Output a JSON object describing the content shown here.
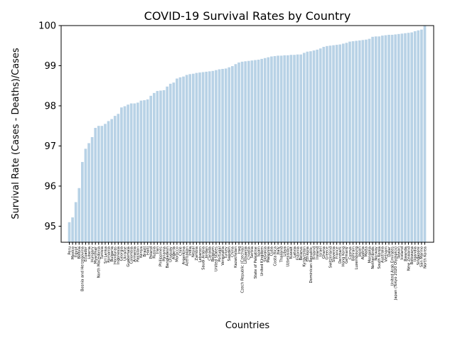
{
  "chart_data": {
    "type": "bar",
    "title": "COVID-19 Survival Rates by Country",
    "xlabel": "Countries",
    "ylabel": "Survival Rate (Cases - Deaths)/Cases",
    "ylim": [
      94.6,
      100.0
    ],
    "yticks": [
      95,
      96,
      97,
      98,
      99,
      100
    ],
    "grid": false,
    "bar_color": "#b8d2e6",
    "categories": [
      "Peru",
      "Mexico",
      "Egypt",
      "Bolivia",
      "Bosnia and Herzegovina",
      "Ecuador",
      "Liberia",
      "Hungary",
      "Myanmar",
      "North Macedonia",
      "Tunisia",
      "Sri Lanka",
      "Romania",
      "Bulgaria",
      "Honduras",
      "Indonesia",
      "Georgia",
      "Ukraine",
      "Guatemala",
      "Colombia",
      "Armenia",
      "Pakistan",
      "Kenya",
      "Brazil",
      "Haiti",
      "Poland",
      "Russia",
      "Iran",
      "Philippines",
      "Panama",
      "Bangladesh",
      "Uruguay",
      "Algeria",
      "Morocco",
      "Chile",
      "Argentina",
      "Azerbaijan",
      "India",
      "Nepal",
      "Zambia",
      "Lebanon",
      "Saudi Arabia",
      "Jordan",
      "Canada",
      "Belgium",
      "United States",
      "Portugal",
      "Venezuela",
      "Turkey",
      "Sweden",
      "China",
      "Kazakhstan",
      "Iraq",
      "Czech Republic (Czechia)",
      "Lithuania",
      "Croatia",
      "Serbia",
      "State of Palestine",
      "Spain",
      "United Kingdom",
      "Slovakia",
      "Malaysia",
      "Cuba",
      "Costa Rica",
      "Italy",
      "Thailand",
      "Libya",
      "Uzbekistan",
      "Kuwait",
      "Latvia",
      "Estonia",
      "Belarus",
      "Kyrgyzstan",
      "Ethiopia",
      "Dominican Republic",
      "Finland",
      "Ireland",
      "Israel",
      "Ghana",
      "Greece",
      "Switzerland",
      "Slovenia",
      "France",
      "Denmark",
      "Hong Kong",
      "Germany",
      "Cyprus",
      "Bahrain",
      "Luxembourg",
      "Japan",
      "Austria",
      "Malta",
      "Mongolia",
      "Netherlands",
      "Norway",
      "South Korea",
      "Australia",
      "Vietnam",
      "Qatar",
      "United Arab Emirates",
      "Japan (Tokyo 2020 Olympics)",
      "Taiwan",
      "Iceland",
      "Rwanda",
      "New Zealand",
      "Botswana",
      "Ugandia",
      "Singapore",
      "San Marino",
      "North Korea"
    ],
    "values": [
      95.1,
      95.22,
      95.6,
      95.95,
      96.6,
      96.93,
      97.07,
      97.22,
      97.45,
      97.5,
      97.5,
      97.55,
      97.62,
      97.67,
      97.75,
      97.8,
      97.96,
      97.99,
      98.03,
      98.06,
      98.06,
      98.08,
      98.13,
      98.14,
      98.16,
      98.25,
      98.32,
      98.37,
      98.38,
      98.39,
      98.48,
      98.55,
      98.58,
      98.68,
      98.71,
      98.73,
      98.77,
      98.79,
      98.8,
      98.82,
      98.83,
      98.84,
      98.85,
      98.86,
      98.87,
      98.89,
      98.91,
      98.92,
      98.93,
      98.96,
      98.99,
      99.04,
      99.08,
      99.1,
      99.11,
      99.12,
      99.13,
      99.14,
      99.15,
      99.17,
      99.19,
      99.21,
      99.23,
      99.24,
      99.25,
      99.25,
      99.26,
      99.26,
      99.27,
      99.27,
      99.28,
      99.28,
      99.32,
      99.35,
      99.36,
      99.38,
      99.4,
      99.43,
      99.47,
      99.49,
      99.5,
      99.51,
      99.52,
      99.53,
      99.55,
      99.57,
      99.6,
      99.61,
      99.62,
      99.63,
      99.64,
      99.65,
      99.67,
      99.72,
      99.73,
      99.73,
      99.75,
      99.76,
      99.77,
      99.77,
      99.78,
      99.79,
      99.8,
      99.81,
      99.82,
      99.83,
      99.86,
      99.88,
      99.9,
      100.0
    ]
  }
}
